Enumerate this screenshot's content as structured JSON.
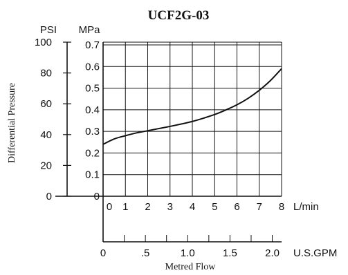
{
  "chart_data": {
    "type": "line",
    "title": "UCF2G-03",
    "ylabel": "Differential Pressure",
    "xlabel": "Metred Flow",
    "grid": true,
    "y_axes": {
      "psi": {
        "unit": "PSI",
        "ticks": [
          {
            "value": 0,
            "label": "0"
          },
          {
            "value": 20,
            "label": "20"
          },
          {
            "value": 40,
            "label": "40"
          },
          {
            "value": 60,
            "label": "60"
          },
          {
            "value": 80,
            "label": "80"
          },
          {
            "value": 100,
            "label": "100"
          }
        ],
        "ylim": [
          0,
          100
        ]
      },
      "mpa": {
        "unit": "MPa",
        "ticks": [
          {
            "value": 0,
            "label": "0"
          },
          {
            "value": 0.1,
            "label": "0.1"
          },
          {
            "value": 0.2,
            "label": "0.2"
          },
          {
            "value": 0.3,
            "label": "0.3"
          },
          {
            "value": 0.4,
            "label": "0.4"
          },
          {
            "value": 0.5,
            "label": "0.5"
          },
          {
            "value": 0.6,
            "label": "0.6"
          },
          {
            "value": 0.7,
            "label": "0.7"
          }
        ],
        "ylim": [
          0,
          0.7
        ]
      }
    },
    "x_axes": {
      "lmin": {
        "unit": "L/min",
        "ticks": [
          {
            "value": 0,
            "label": "0"
          },
          {
            "value": 1,
            "label": "1"
          },
          {
            "value": 2,
            "label": "2"
          },
          {
            "value": 3,
            "label": "3"
          },
          {
            "value": 4,
            "label": "4"
          },
          {
            "value": 5,
            "label": "5"
          },
          {
            "value": 6,
            "label": "6"
          },
          {
            "value": 7,
            "label": "7"
          },
          {
            "value": 8,
            "label": "8"
          }
        ],
        "xlim": [
          0,
          8
        ]
      },
      "gpm": {
        "unit": "U.S.GPM",
        "ticks": [
          {
            "value": 0,
            "label": "0"
          },
          {
            "value": 0.5,
            "label": ".5"
          },
          {
            "value": 1.0,
            "label": "1.0"
          },
          {
            "value": 1.5,
            "label": "1.5"
          },
          {
            "value": 2.0,
            "label": "2.0"
          }
        ],
        "minor_ticks": [
          0.25,
          0.75,
          1.25,
          1.75
        ],
        "xlim": [
          0,
          2.11
        ]
      }
    },
    "series": [
      {
        "x_unit": "L/min",
        "y_unit": "MPa",
        "x": [
          0,
          0.5,
          1,
          1.5,
          2,
          2.5,
          3,
          3.5,
          4,
          4.5,
          5,
          5.5,
          6,
          6.5,
          7,
          7.5,
          8
        ],
        "y": [
          0.24,
          0.265,
          0.28,
          0.293,
          0.303,
          0.313,
          0.323,
          0.334,
          0.346,
          0.361,
          0.378,
          0.399,
          0.423,
          0.453,
          0.49,
          0.535,
          0.59
        ]
      }
    ]
  }
}
